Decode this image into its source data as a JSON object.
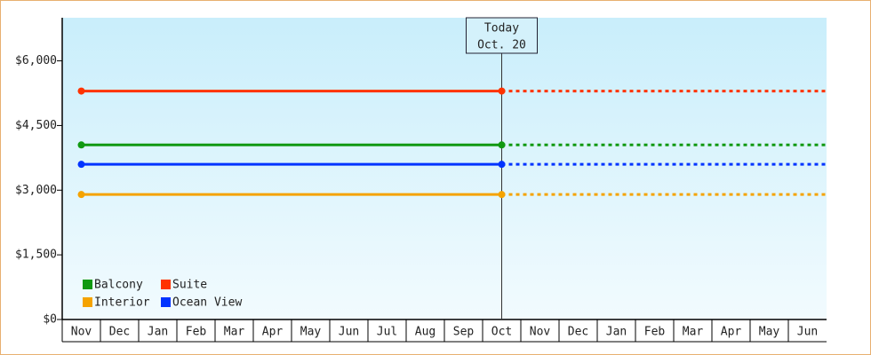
{
  "chart_data": {
    "type": "line",
    "categories": [
      "Nov",
      "Dec",
      "Jan",
      "Feb",
      "Mar",
      "Apr",
      "May",
      "Jun",
      "Jul",
      "Aug",
      "Sep",
      "Oct",
      "Nov",
      "Dec",
      "Jan",
      "Feb",
      "Mar",
      "Apr",
      "May",
      "Jun"
    ],
    "series": [
      {
        "name": "Balcony",
        "color": "#119911",
        "values": [
          4050,
          4050,
          4050,
          4050,
          4050,
          4050,
          4050,
          4050,
          4050,
          4050,
          4050,
          4050,
          4050,
          4050,
          4050,
          4050,
          4050,
          4050,
          4050,
          4050
        ]
      },
      {
        "name": "Suite",
        "color": "#ff3300",
        "values": [
          5300,
          5300,
          5300,
          5300,
          5300,
          5300,
          5300,
          5300,
          5300,
          5300,
          5300,
          5300,
          5300,
          5300,
          5300,
          5300,
          5300,
          5300,
          5300,
          5300
        ]
      },
      {
        "name": "Interior",
        "color": "#f5a300",
        "values": [
          2900,
          2900,
          2900,
          2900,
          2900,
          2900,
          2900,
          2900,
          2900,
          2900,
          2900,
          2900,
          2900,
          2900,
          2900,
          2900,
          2900,
          2900,
          2900,
          2900
        ]
      },
      {
        "name": "Ocean View",
        "color": "#0033ff",
        "values": [
          3600,
          3600,
          3600,
          3600,
          3600,
          3600,
          3600,
          3600,
          3600,
          3600,
          3600,
          3600,
          3600,
          3600,
          3600,
          3600,
          3600,
          3600,
          3600,
          3600
        ]
      }
    ],
    "annotation": {
      "lines": [
        "Today",
        "Oct. 20"
      ],
      "category_index": 11
    },
    "ylim": [
      0,
      7000
    ],
    "yticks": [
      {
        "value": 0,
        "label": "$0"
      },
      {
        "value": 1500,
        "label": "$1,500"
      },
      {
        "value": 3000,
        "label": "$3,000"
      },
      {
        "value": 4500,
        "label": "$4,500"
      },
      {
        "value": 6000,
        "label": "$6,000"
      }
    ]
  }
}
